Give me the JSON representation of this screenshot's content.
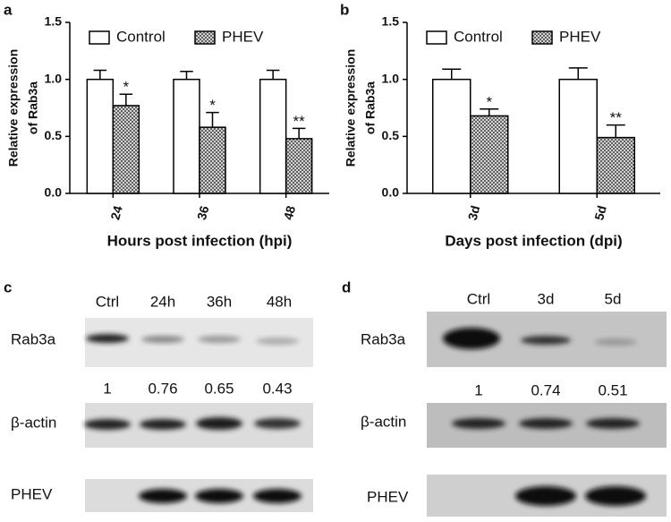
{
  "panel_labels": [
    "a",
    "b",
    "c",
    "d"
  ],
  "chart_data": [
    {
      "type": "bar",
      "categories": [
        "24",
        "36",
        "48"
      ],
      "series": [
        {
          "name": "Control",
          "color": "#ffffff",
          "values": [
            1.0,
            1.0,
            1.0
          ],
          "errors": [
            0.08,
            0.07,
            0.08
          ]
        },
        {
          "name": "PHEV",
          "color": "#555555",
          "pattern": "crosshatch",
          "values": [
            0.77,
            0.58,
            0.48
          ],
          "errors": [
            0.1,
            0.13,
            0.09
          ],
          "significance": [
            "*",
            "*",
            "**"
          ]
        }
      ],
      "ylabel": [
        "Relative expression",
        "of Rab3a"
      ],
      "xlabel": "Hours post infection (hpi)",
      "ylim": [
        0,
        1.5
      ],
      "yticks": [
        {
          "value": 0,
          "label": "0.0"
        },
        {
          "value": 0.5,
          "label": "0.5"
        },
        {
          "value": 1,
          "label": "1.0"
        },
        {
          "value": 1.5,
          "label": "1.5"
        }
      ],
      "legend": "top-left"
    },
    {
      "type": "bar",
      "categories": [
        "3d",
        "5d"
      ],
      "series": [
        {
          "name": "Control",
          "color": "#ffffff",
          "values": [
            1.0,
            1.0
          ],
          "errors": [
            0.09,
            0.1
          ]
        },
        {
          "name": "PHEV",
          "color": "#555555",
          "pattern": "crosshatch",
          "values": [
            0.68,
            0.49
          ],
          "errors": [
            0.06,
            0.11
          ],
          "significance": [
            "*",
            "**"
          ]
        }
      ],
      "ylabel": [
        "Relative expression",
        "of Rab3a"
      ],
      "xlabel": "Days post infection (dpi)",
      "ylim": [
        0,
        1.5
      ],
      "yticks": [
        {
          "value": 0,
          "label": "0.0"
        },
        {
          "value": 0.5,
          "label": "0.5"
        },
        {
          "value": 1,
          "label": "1.0"
        },
        {
          "value": 1.5,
          "label": "1.5"
        }
      ],
      "legend": "top-left"
    }
  ],
  "blots": [
    {
      "lanes": [
        "Ctrl",
        "24h",
        "36h",
        "48h"
      ],
      "rows": [
        "Rab3a",
        "β-actin",
        "PHEV"
      ],
      "quantification": [
        "1",
        "0.76",
        "0.65",
        "0.43"
      ]
    },
    {
      "lanes": [
        "Ctrl",
        "3d",
        "5d"
      ],
      "rows": [
        "Rab3a",
        "β-actin",
        "PHEV"
      ],
      "quantification": [
        "1",
        "0.74",
        "0.51"
      ]
    }
  ]
}
